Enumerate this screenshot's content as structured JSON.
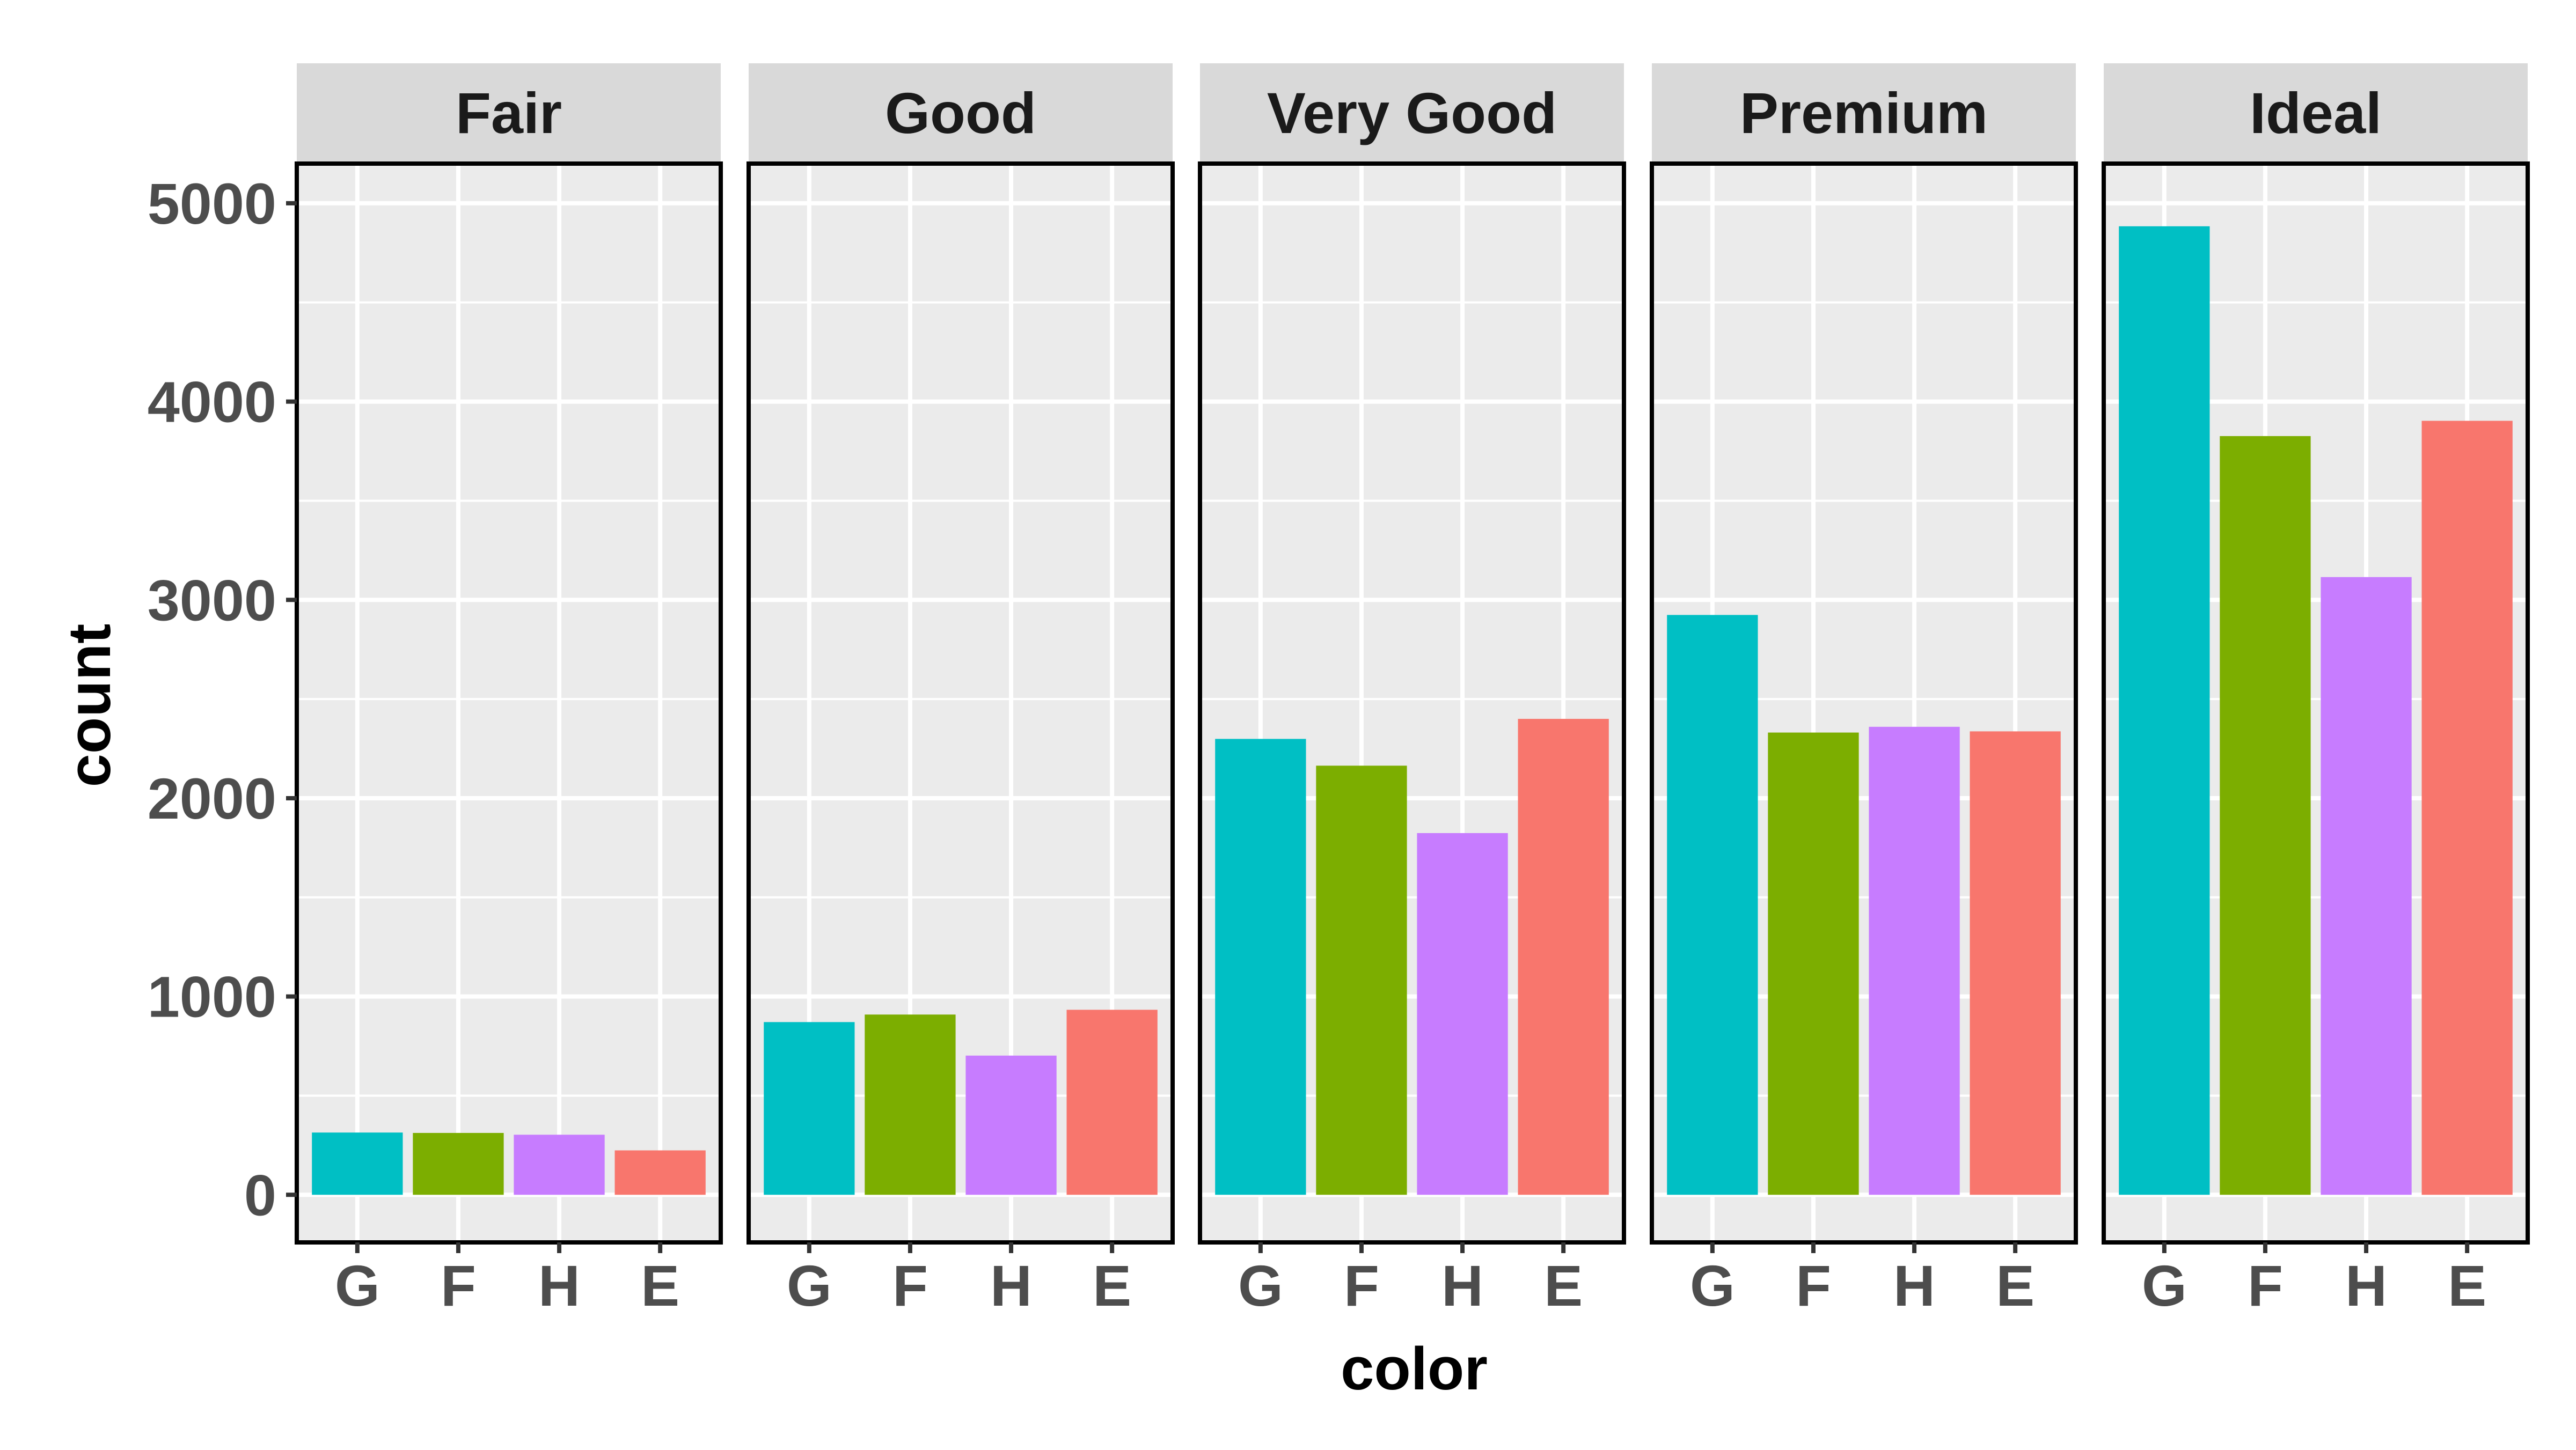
{
  "chart_data": {
    "type": "bar",
    "facet_by": "cut",
    "facets": [
      "Fair",
      "Good",
      "Very Good",
      "Premium",
      "Ideal"
    ],
    "categories": [
      "G",
      "F",
      "H",
      "E"
    ],
    "category_colors": [
      "#00BFC4",
      "#7CAE00",
      "#C77CFF",
      "#F8766D"
    ],
    "values": [
      [
        314,
        312,
        303,
        224
      ],
      [
        871,
        909,
        702,
        933
      ],
      [
        2299,
        2164,
        1824,
        2400
      ],
      [
        2924,
        2331,
        2360,
        2337
      ],
      [
        4884,
        3826,
        3115,
        3903
      ]
    ],
    "xlabel": "color",
    "ylabel": "count",
    "ylim": [
      -240,
      5200
    ],
    "yticks": [
      0,
      1000,
      2000,
      3000,
      4000,
      5000
    ],
    "ytick_labels": [
      "0",
      "1000",
      "2000",
      "3000",
      "4000",
      "5000"
    ],
    "grid": true,
    "panel_background": "#EBEBEB",
    "strip_background": "#D9D9D9",
    "legend": "none"
  }
}
